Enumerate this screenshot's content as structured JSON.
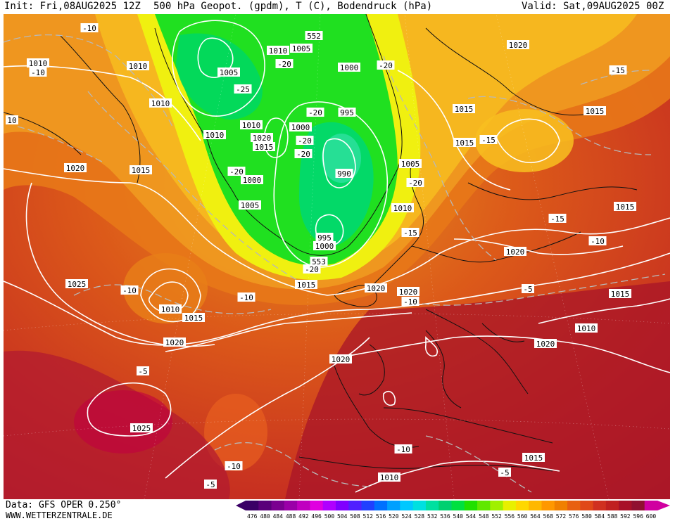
{
  "header": {
    "init": "Init: Fri,08AUG2025 12Z",
    "title": "500 hPa Geopot. (gpdm), T (C), Bodendruck (hPa)",
    "valid": "Valid: Sat,09AUG2025 00Z"
  },
  "footer": {
    "data_source": "Data: GFS OPER 0.250°",
    "website": "WWW.WETTERZENTRALE.DE"
  },
  "colorscale": {
    "values": [
      "476",
      "480",
      "484",
      "488",
      "492",
      "496",
      "500",
      "504",
      "508",
      "512",
      "516",
      "520",
      "524",
      "528",
      "532",
      "536",
      "540",
      "544",
      "548",
      "552",
      "556",
      "560",
      "564",
      "568",
      "572",
      "576",
      "580",
      "584",
      "588",
      "592",
      "596",
      "600"
    ],
    "colors": [
      "#3a0066",
      "#5a007a",
      "#7a0090",
      "#9a00a8",
      "#c000c0",
      "#e000e0",
      "#b000ff",
      "#8000ff",
      "#5020ff",
      "#2040ff",
      "#0070ff",
      "#00a0ff",
      "#00c8ff",
      "#00e0e0",
      "#00e0a0",
      "#00d070",
      "#00e040",
      "#20e000",
      "#60e800",
      "#a0f000",
      "#e8f000",
      "#ffd800",
      "#ffb800",
      "#ff9800",
      "#f08000",
      "#e86010",
      "#e04818",
      "#d03020",
      "#c02020",
      "#a81028",
      "#901030",
      "#d000a0"
    ]
  },
  "isobar_labels": [
    {
      "text": "552"
    },
    {
      "text": "1010"
    },
    {
      "text": "1005"
    },
    {
      "text": "1010"
    },
    {
      "text": "1005"
    },
    {
      "text": "1000"
    },
    {
      "text": "995"
    },
    {
      "text": "1010"
    },
    {
      "text": "1020"
    },
    {
      "text": "1015"
    },
    {
      "text": "1000"
    },
    {
      "text": "990"
    },
    {
      "text": "1000"
    },
    {
      "text": "1005"
    },
    {
      "text": "995"
    },
    {
      "text": "1000"
    },
    {
      "text": "553"
    },
    {
      "text": "1010"
    },
    {
      "text": "1005"
    },
    {
      "text": "1010"
    },
    {
      "text": "1015"
    },
    {
      "text": "1020"
    },
    {
      "text": "1010"
    },
    {
      "text": "1010"
    },
    {
      "text": "1020"
    },
    {
      "text": "1025"
    },
    {
      "text": "1010"
    },
    {
      "text": "1015"
    },
    {
      "text": "1015"
    },
    {
      "text": "1020"
    },
    {
      "text": "1020"
    },
    {
      "text": "1020"
    },
    {
      "text": "1020"
    },
    {
      "text": "1025"
    },
    {
      "text": "1015"
    },
    {
      "text": "1015"
    },
    {
      "text": "1020"
    },
    {
      "text": "1015"
    },
    {
      "text": "1015"
    },
    {
      "text": "1015"
    },
    {
      "text": "1010"
    },
    {
      "text": "1020"
    },
    {
      "text": "1015"
    },
    {
      "text": "1015"
    },
    {
      "text": "1010"
    },
    {
      "text": "1015"
    },
    {
      "text": "1010"
    }
  ],
  "temp_labels": [
    {
      "text": "-10"
    },
    {
      "text": "-10"
    },
    {
      "text": "-20"
    },
    {
      "text": "-25"
    },
    {
      "text": "-20"
    },
    {
      "text": "-20"
    },
    {
      "text": "-20"
    },
    {
      "text": "-20"
    },
    {
      "text": "-20"
    },
    {
      "text": "-20"
    },
    {
      "text": "-15"
    },
    {
      "text": "-15"
    },
    {
      "text": "-15"
    },
    {
      "text": "-15"
    },
    {
      "text": "-10"
    },
    {
      "text": "-10"
    },
    {
      "text": "-10"
    },
    {
      "text": "-5"
    },
    {
      "text": "-10"
    },
    {
      "text": "-5"
    },
    {
      "text": "-10"
    },
    {
      "text": "-5"
    },
    {
      "text": "-10"
    },
    {
      "text": "-5"
    },
    {
      "text": "-10"
    },
    {
      "text": "10"
    },
    {
      "text": "-20"
    }
  ]
}
